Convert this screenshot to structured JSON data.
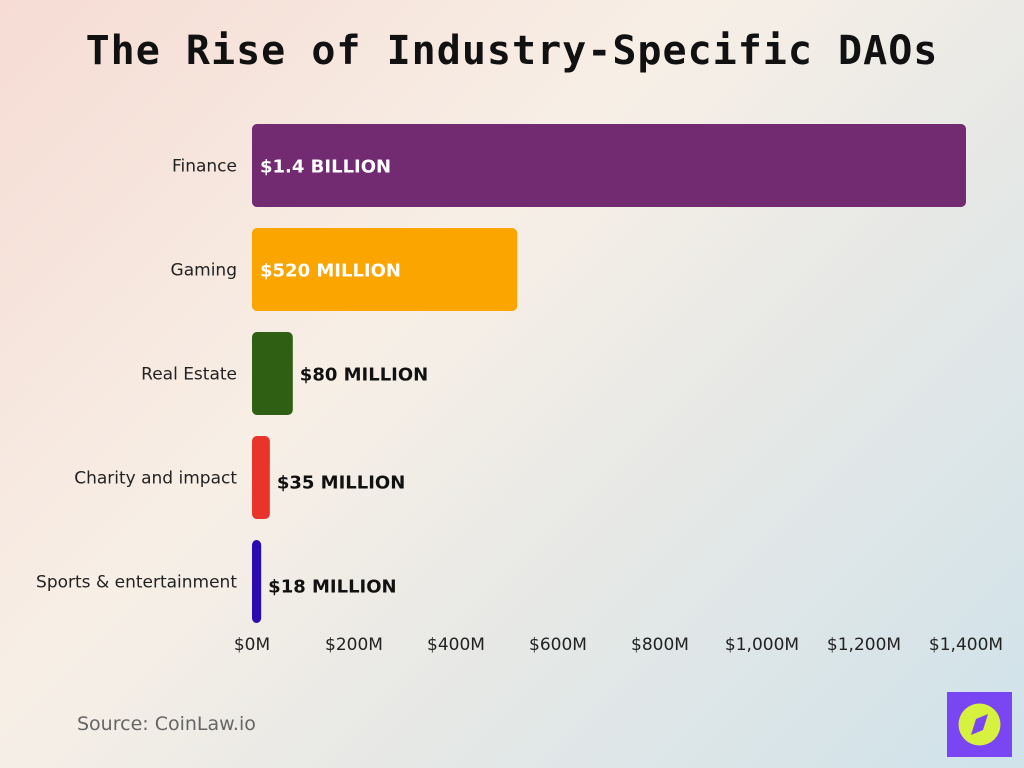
{
  "title": "The Rise of Industry-Specific DAOs",
  "source": "Source: CoinLaw.io",
  "logo_icon": "compass-icon",
  "chart_data": {
    "type": "bar",
    "orientation": "horizontal",
    "title": "The Rise of Industry-Specific DAOs",
    "categories": [
      "Finance",
      "Gaming",
      "Real Estate",
      "Charity and impact",
      "Sports & entertainment"
    ],
    "values": [
      1400,
      520,
      80,
      35,
      18
    ],
    "unit": "$M",
    "data_labels": [
      "$1.4 BILLION",
      "$520 MILLION",
      "$80 MILLION",
      "$35 MILLION",
      "$18 MILLION"
    ],
    "colors": [
      "#722a70",
      "#fba500",
      "#2f5f12",
      "#e8342a",
      "#2a0cb0"
    ],
    "xlim": [
      0,
      1400
    ],
    "x_ticks": [
      0,
      200,
      400,
      600,
      800,
      1000,
      1200,
      1400
    ],
    "x_tick_labels": [
      "$0M",
      "$200M",
      "$400M",
      "$600M",
      "$800M",
      "$1,000M",
      "$1,200M",
      "$1,400M"
    ],
    "grid": false,
    "legend": "none"
  }
}
